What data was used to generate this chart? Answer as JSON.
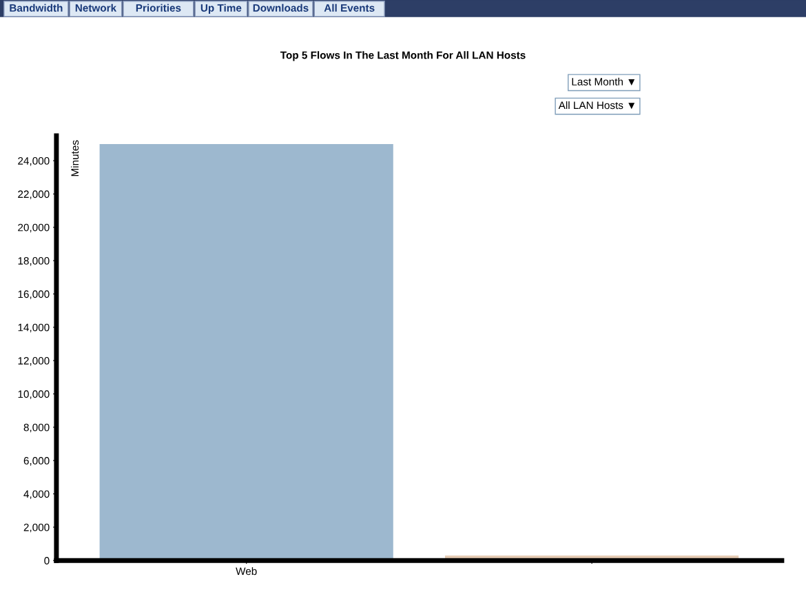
{
  "chart_data": {
    "type": "bar",
    "title": "Top 5 Flows In The Last Month For All LAN Hosts",
    "ylabel": "Minutes",
    "categories": [
      "Web",
      null
    ],
    "values": [
      25000,
      300
    ],
    "colors": [
      "#9db8cf",
      "#e6cbb4"
    ],
    "ylim": [
      0,
      25500
    ],
    "yticks": [
      {
        "value": 0,
        "label": "0"
      },
      {
        "value": 2000,
        "label": "2,000"
      },
      {
        "value": 4000,
        "label": "4,000"
      },
      {
        "value": 6000,
        "label": "6,000"
      },
      {
        "value": 8000,
        "label": "8,000"
      },
      {
        "value": 10000,
        "label": "10,000"
      },
      {
        "value": 12000,
        "label": "12,000"
      },
      {
        "value": 14000,
        "label": "14,000"
      },
      {
        "value": 16000,
        "label": "16,000"
      },
      {
        "value": 18000,
        "label": "18,000"
      },
      {
        "value": 20000,
        "label": "20,000"
      },
      {
        "value": 22000,
        "label": "22,000"
      },
      {
        "value": 24000,
        "label": "24,000"
      }
    ],
    "grid": false,
    "annotations": [
      "Bandwidth",
      "Network",
      "Priorities",
      "Up Time",
      "Downloads",
      "All Events",
      "Last Month ▼",
      "All LAN Hosts ▼"
    ]
  }
}
